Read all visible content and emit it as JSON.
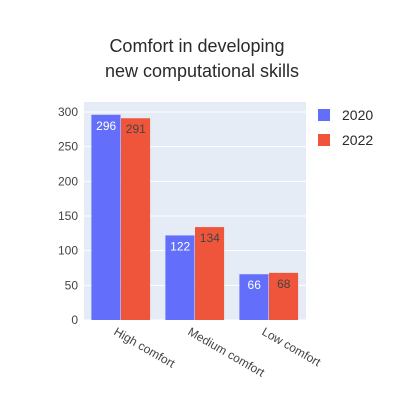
{
  "chart_data": {
    "type": "bar",
    "title_lines": [
      "Comfort in developing",
      "new computational skills"
    ],
    "xlabel": "",
    "ylabel": "",
    "categories": [
      "High comfort",
      "Medium comfort",
      "Low comfort"
    ],
    "series": [
      {
        "name": "2020",
        "values": [
          296,
          122,
          66
        ],
        "color": "#636efa",
        "label_color": "#ffffff"
      },
      {
        "name": "2022",
        "values": [
          291,
          134,
          68
        ],
        "color": "#ef553b",
        "label_color": "#444444"
      }
    ],
    "ylim": [
      0,
      300
    ],
    "yticks": [
      0,
      50,
      100,
      150,
      200,
      250,
      300
    ],
    "grid": true,
    "plot_background": "#e5ecf6",
    "legend_position": "top-right"
  }
}
